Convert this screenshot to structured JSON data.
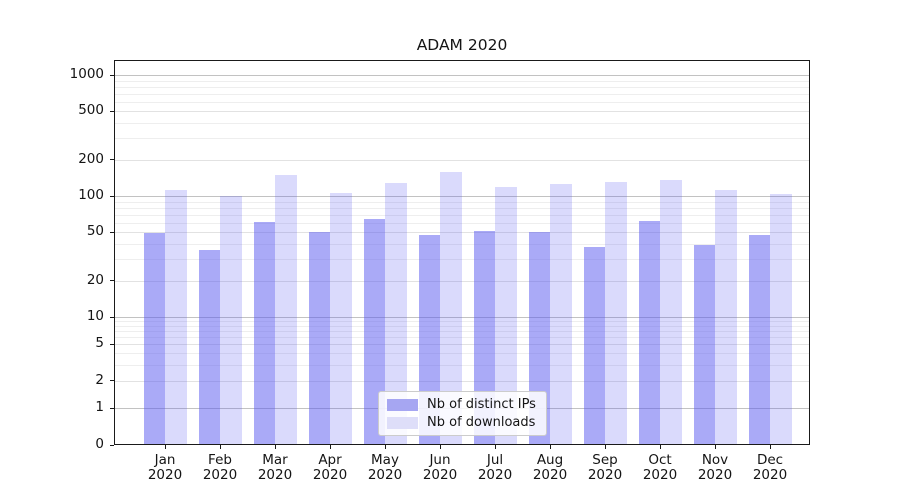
{
  "title": "ADAM 2020",
  "chart_data": {
    "type": "bar",
    "title": "ADAM 2020",
    "categories": [
      "Jan 2020",
      "Feb 2020",
      "Mar 2020",
      "Apr 2020",
      "May 2020",
      "Jun 2020",
      "Jul 2020",
      "Aug 2020",
      "Sep 2020",
      "Oct 2020",
      "Nov 2020",
      "Dec 2020"
    ],
    "months": [
      "Jan",
      "Feb",
      "Mar",
      "Apr",
      "May",
      "Jun",
      "Jul",
      "Aug",
      "Sep",
      "Oct",
      "Nov",
      "Dec"
    ],
    "year": "2020",
    "series": [
      {
        "name": "Nb of distinct IPs",
        "color": "#a6a6f2",
        "fill": "rgba(85,85,240,0.50)",
        "values": [
          49,
          36,
          61,
          50,
          65,
          48,
          51,
          50,
          38,
          62,
          39,
          48
        ]
      },
      {
        "name": "Nb of downloads",
        "color": "#dedef9",
        "fill": "rgba(85,85,240,0.22)",
        "values": [
          113,
          100,
          150,
          105,
          128,
          157,
          118,
          126,
          130,
          135,
          112,
          103
        ]
      }
    ],
    "yscale": "log-like (log decades 10-1000, compressed decade 1-10, linear 0-1)",
    "ytick_labels": [
      "1000",
      "500",
      "200",
      "100",
      "50",
      "20",
      "10",
      "5",
      "2",
      "1",
      "0"
    ],
    "ytick_values": [
      1000,
      500,
      200,
      100,
      50,
      20,
      10,
      5,
      2,
      1,
      0
    ],
    "ylim": [
      0,
      1330
    ],
    "grid": "horizontal only, log minor lines, darker lines at powers of ten",
    "grid_major_values": [
      1,
      10,
      100,
      1000
    ],
    "grid_mid_values": [
      2,
      5,
      20,
      50,
      200,
      500
    ],
    "grid_minor_values": [
      3,
      4,
      6,
      7,
      8,
      9,
      30,
      40,
      60,
      70,
      80,
      90,
      300,
      400,
      600,
      700,
      800,
      900
    ],
    "legend_position": "lower center"
  },
  "colors": {
    "grid_major": "#c2c2c2",
    "grid_mid": "#e2e2e2",
    "grid_minor": "#eeeeee",
    "spine": "#1a1a1a",
    "legend_border": "#cccccc"
  }
}
